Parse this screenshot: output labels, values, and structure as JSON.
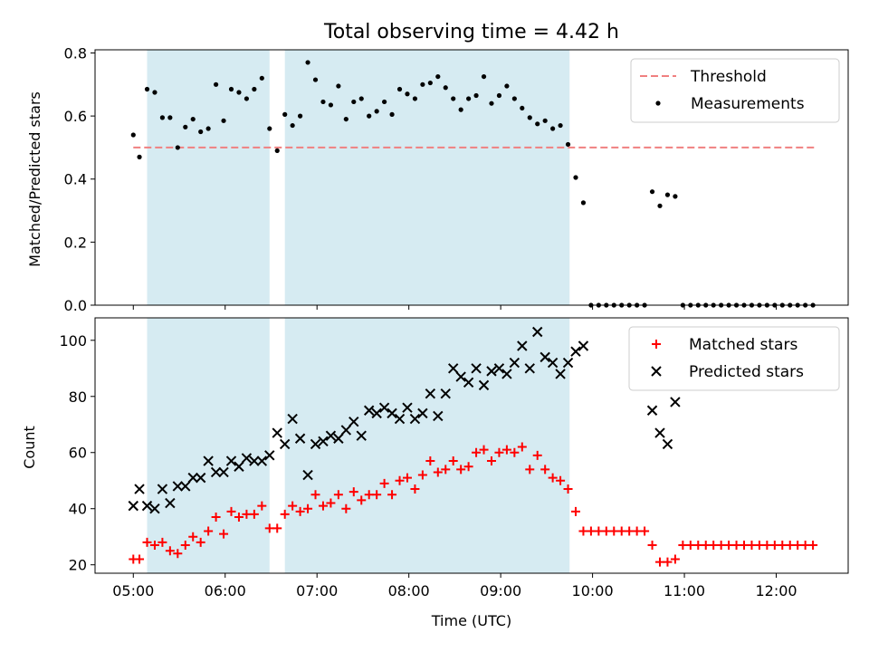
{
  "chart_data": [
    {
      "type": "scatter",
      "title": "Total observing time = 4.42 h",
      "ylabel": "Matched/Predicted stars",
      "xlabel": "",
      "xlim": [
        "04:35",
        "12:47"
      ],
      "ylim": [
        0,
        0.81
      ],
      "yticks": [
        0,
        0.2,
        0.4,
        0.6,
        0.8
      ],
      "ytick_labels": [
        "0.0",
        "0.2",
        "0.4",
        "0.6",
        "0.8"
      ],
      "grid": false,
      "legend_position": "top-right",
      "shaded_intervals": [
        {
          "start": "05:09",
          "end": "06:29"
        },
        {
          "start": "06:39",
          "end": "09:45"
        }
      ],
      "threshold": {
        "name": "Threshold",
        "y": 0.5,
        "x_start": "05:00",
        "x_end": "12:25",
        "color": "#f08080",
        "style": "dashed"
      },
      "series": [
        {
          "name": "Measurements",
          "marker": "dot",
          "color": "#000000",
          "points": [
            [
              "05:00",
              0.54
            ],
            [
              "05:04",
              0.47
            ],
            [
              "05:09",
              0.685
            ],
            [
              "05:14",
              0.675
            ],
            [
              "05:19",
              0.595
            ],
            [
              "05:24",
              0.595
            ],
            [
              "05:29",
              0.5
            ],
            [
              "05:34",
              0.565
            ],
            [
              "05:39",
              0.59
            ],
            [
              "05:44",
              0.55
            ],
            [
              "05:49",
              0.56
            ],
            [
              "05:54",
              0.7
            ],
            [
              "05:59",
              0.585
            ],
            [
              "06:04",
              0.685
            ],
            [
              "06:09",
              0.675
            ],
            [
              "06:14",
              0.655
            ],
            [
              "06:19",
              0.685
            ],
            [
              "06:24",
              0.72
            ],
            [
              "06:29",
              0.56
            ],
            [
              "06:34",
              0.49
            ],
            [
              "06:39",
              0.605
            ],
            [
              "06:44",
              0.57
            ],
            [
              "06:49",
              0.6
            ],
            [
              "06:54",
              0.77
            ],
            [
              "06:59",
              0.715
            ],
            [
              "07:04",
              0.645
            ],
            [
              "07:09",
              0.635
            ],
            [
              "07:14",
              0.695
            ],
            [
              "07:19",
              0.59
            ],
            [
              "07:24",
              0.645
            ],
            [
              "07:29",
              0.655
            ],
            [
              "07:34",
              0.6
            ],
            [
              "07:39",
              0.615
            ],
            [
              "07:44",
              0.645
            ],
            [
              "07:49",
              0.605
            ],
            [
              "07:54",
              0.685
            ],
            [
              "07:59",
              0.67
            ],
            [
              "08:04",
              0.655
            ],
            [
              "08:09",
              0.7
            ],
            [
              "08:14",
              0.705
            ],
            [
              "08:19",
              0.725
            ],
            [
              "08:24",
              0.69
            ],
            [
              "08:29",
              0.655
            ],
            [
              "08:34",
              0.62
            ],
            [
              "08:39",
              0.655
            ],
            [
              "08:44",
              0.665
            ],
            [
              "08:49",
              0.725
            ],
            [
              "08:54",
              0.64
            ],
            [
              "08:59",
              0.665
            ],
            [
              "09:04",
              0.695
            ],
            [
              "09:09",
              0.655
            ],
            [
              "09:14",
              0.625
            ],
            [
              "09:19",
              0.595
            ],
            [
              "09:24",
              0.575
            ],
            [
              "09:29",
              0.585
            ],
            [
              "09:34",
              0.56
            ],
            [
              "09:39",
              0.57
            ],
            [
              "09:44",
              0.51
            ],
            [
              "09:49",
              0.405
            ],
            [
              "09:54",
              0.325
            ],
            [
              "09:59",
              0.0
            ],
            [
              "10:04",
              0.0
            ],
            [
              "10:09",
              0.0
            ],
            [
              "10:14",
              0.0
            ],
            [
              "10:19",
              0.0
            ],
            [
              "10:24",
              0.0
            ],
            [
              "10:29",
              0.0
            ],
            [
              "10:34",
              0.0
            ],
            [
              "10:39",
              0.36
            ],
            [
              "10:44",
              0.315
            ],
            [
              "10:49",
              0.35
            ],
            [
              "10:54",
              0.345
            ],
            [
              "10:59",
              0.0
            ],
            [
              "11:04",
              0.0
            ],
            [
              "11:09",
              0.0
            ],
            [
              "11:14",
              0.0
            ],
            [
              "11:19",
              0.0
            ],
            [
              "11:24",
              0.0
            ],
            [
              "11:29",
              0.0
            ],
            [
              "11:34",
              0.0
            ],
            [
              "11:39",
              0.0
            ],
            [
              "11:44",
              0.0
            ],
            [
              "11:49",
              0.0
            ],
            [
              "11:54",
              0.0
            ],
            [
              "11:59",
              0.0
            ],
            [
              "12:04",
              0.0
            ],
            [
              "12:09",
              0.0
            ],
            [
              "12:14",
              0.0
            ],
            [
              "12:19",
              0.0
            ],
            [
              "12:24",
              0.0
            ]
          ]
        }
      ]
    },
    {
      "type": "scatter",
      "title": "",
      "xlabel": "Time (UTC)",
      "ylabel": "Count",
      "xlim": [
        "04:35",
        "12:47"
      ],
      "ylim": [
        17,
        108
      ],
      "xticks": [
        "05:00",
        "06:00",
        "07:00",
        "08:00",
        "09:00",
        "10:00",
        "11:00",
        "12:00"
      ],
      "yticks": [
        20,
        40,
        60,
        80,
        100
      ],
      "ytick_labels": [
        "20",
        "40",
        "60",
        "80",
        "100"
      ],
      "grid": false,
      "legend_position": "top-right",
      "shaded_intervals": [
        {
          "start": "05:09",
          "end": "06:29"
        },
        {
          "start": "06:39",
          "end": "09:45"
        }
      ],
      "series": [
        {
          "name": "Matched stars",
          "marker": "plus",
          "color": "#ff0000",
          "points": [
            [
              "05:00",
              22
            ],
            [
              "05:04",
              22
            ],
            [
              "05:09",
              28
            ],
            [
              "05:14",
              27
            ],
            [
              "05:19",
              28
            ],
            [
              "05:24",
              25
            ],
            [
              "05:29",
              24
            ],
            [
              "05:34",
              27
            ],
            [
              "05:39",
              30
            ],
            [
              "05:44",
              28
            ],
            [
              "05:49",
              32
            ],
            [
              "05:54",
              37
            ],
            [
              "05:59",
              31
            ],
            [
              "06:04",
              39
            ],
            [
              "06:09",
              37
            ],
            [
              "06:14",
              38
            ],
            [
              "06:19",
              38
            ],
            [
              "06:24",
              41
            ],
            [
              "06:29",
              33
            ],
            [
              "06:34",
              33
            ],
            [
              "06:39",
              38
            ],
            [
              "06:44",
              41
            ],
            [
              "06:49",
              39
            ],
            [
              "06:54",
              40
            ],
            [
              "06:59",
              45
            ],
            [
              "07:04",
              41
            ],
            [
              "07:09",
              42
            ],
            [
              "07:14",
              45
            ],
            [
              "07:19",
              40
            ],
            [
              "07:24",
              46
            ],
            [
              "07:29",
              43
            ],
            [
              "07:34",
              45
            ],
            [
              "07:39",
              45
            ],
            [
              "07:44",
              49
            ],
            [
              "07:49",
              45
            ],
            [
              "07:54",
              50
            ],
            [
              "07:59",
              51
            ],
            [
              "08:04",
              47
            ],
            [
              "08:09",
              52
            ],
            [
              "08:14",
              57
            ],
            [
              "08:19",
              53
            ],
            [
              "08:24",
              54
            ],
            [
              "08:29",
              57
            ],
            [
              "08:34",
              54
            ],
            [
              "08:39",
              55
            ],
            [
              "08:44",
              60
            ],
            [
              "08:49",
              61
            ],
            [
              "08:54",
              57
            ],
            [
              "08:59",
              60
            ],
            [
              "09:04",
              61
            ],
            [
              "09:09",
              60
            ],
            [
              "09:14",
              62
            ],
            [
              "09:19",
              54
            ],
            [
              "09:24",
              59
            ],
            [
              "09:29",
              54
            ],
            [
              "09:34",
              51
            ],
            [
              "09:39",
              50
            ],
            [
              "09:44",
              47
            ],
            [
              "09:49",
              39
            ],
            [
              "09:54",
              32
            ],
            [
              "09:59",
              32
            ],
            [
              "10:04",
              32
            ],
            [
              "10:09",
              32
            ],
            [
              "10:14",
              32
            ],
            [
              "10:19",
              32
            ],
            [
              "10:24",
              32
            ],
            [
              "10:29",
              32
            ],
            [
              "10:34",
              32
            ],
            [
              "10:39",
              27
            ],
            [
              "10:44",
              21
            ],
            [
              "10:49",
              21
            ],
            [
              "10:54",
              22
            ],
            [
              "10:59",
              27
            ],
            [
              "11:04",
              27
            ],
            [
              "11:09",
              27
            ],
            [
              "11:14",
              27
            ],
            [
              "11:19",
              27
            ],
            [
              "11:24",
              27
            ],
            [
              "11:29",
              27
            ],
            [
              "11:34",
              27
            ],
            [
              "11:39",
              27
            ],
            [
              "11:44",
              27
            ],
            [
              "11:49",
              27
            ],
            [
              "11:54",
              27
            ],
            [
              "11:59",
              27
            ],
            [
              "12:04",
              27
            ],
            [
              "12:09",
              27
            ],
            [
              "12:14",
              27
            ],
            [
              "12:19",
              27
            ],
            [
              "12:24",
              27
            ]
          ]
        },
        {
          "name": "Predicted stars",
          "marker": "x",
          "color": "#000000",
          "points": [
            [
              "05:00",
              41
            ],
            [
              "05:04",
              47
            ],
            [
              "05:09",
              41
            ],
            [
              "05:14",
              40
            ],
            [
              "05:19",
              47
            ],
            [
              "05:24",
              42
            ],
            [
              "05:29",
              48
            ],
            [
              "05:34",
              48
            ],
            [
              "05:39",
              51
            ],
            [
              "05:44",
              51
            ],
            [
              "05:49",
              57
            ],
            [
              "05:54",
              53
            ],
            [
              "05:59",
              53
            ],
            [
              "06:04",
              57
            ],
            [
              "06:09",
              55
            ],
            [
              "06:14",
              58
            ],
            [
              "06:19",
              57
            ],
            [
              "06:24",
              57
            ],
            [
              "06:29",
              59
            ],
            [
              "06:34",
              67
            ],
            [
              "06:39",
              63
            ],
            [
              "06:44",
              72
            ],
            [
              "06:49",
              65
            ],
            [
              "06:54",
              52
            ],
            [
              "06:59",
              63
            ],
            [
              "07:04",
              64
            ],
            [
              "07:09",
              66
            ],
            [
              "07:14",
              65
            ],
            [
              "07:19",
              68
            ],
            [
              "07:24",
              71
            ],
            [
              "07:29",
              66
            ],
            [
              "07:34",
              75
            ],
            [
              "07:39",
              74
            ],
            [
              "07:44",
              76
            ],
            [
              "07:49",
              74
            ],
            [
              "07:54",
              72
            ],
            [
              "07:59",
              76
            ],
            [
              "08:04",
              72
            ],
            [
              "08:09",
              74
            ],
            [
              "08:14",
              81
            ],
            [
              "08:19",
              73
            ],
            [
              "08:24",
              81
            ],
            [
              "08:29",
              90
            ],
            [
              "08:34",
              87
            ],
            [
              "08:39",
              85
            ],
            [
              "08:44",
              90
            ],
            [
              "08:49",
              84
            ],
            [
              "08:54",
              89
            ],
            [
              "08:59",
              90
            ],
            [
              "09:04",
              88
            ],
            [
              "09:09",
              92
            ],
            [
              "09:14",
              98
            ],
            [
              "09:19",
              90
            ],
            [
              "09:24",
              103
            ],
            [
              "09:29",
              94
            ],
            [
              "09:34",
              92
            ],
            [
              "09:39",
              88
            ],
            [
              "09:44",
              92
            ],
            [
              "09:49",
              96
            ],
            [
              "09:54",
              98
            ],
            [
              "10:39",
              75
            ],
            [
              "10:44",
              67
            ],
            [
              "10:49",
              63
            ],
            [
              "10:54",
              78
            ]
          ]
        }
      ]
    }
  ]
}
